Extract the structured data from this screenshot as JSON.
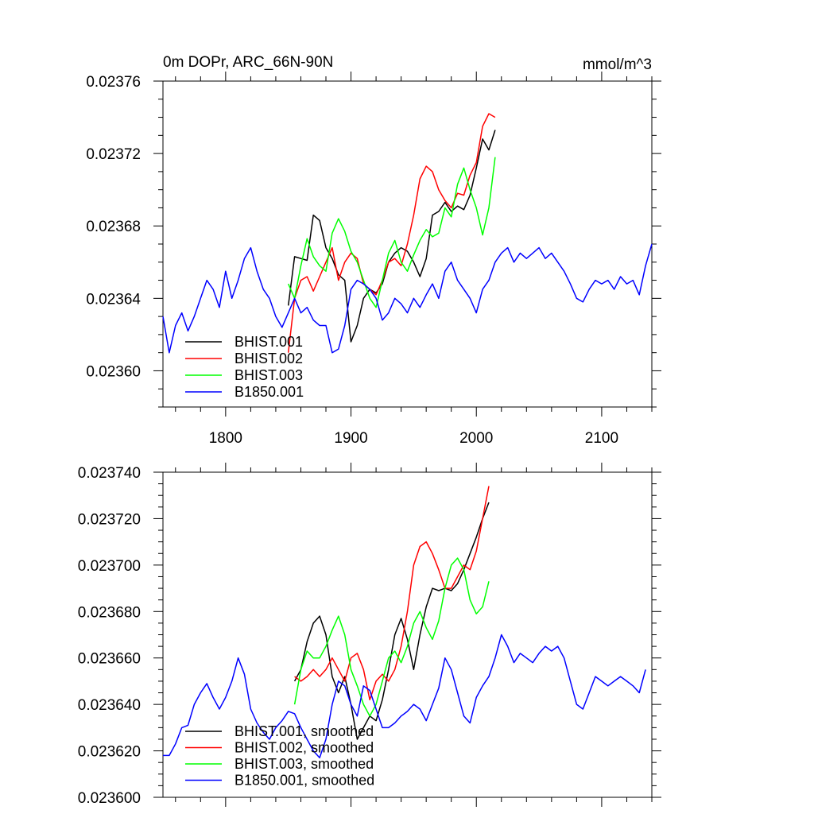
{
  "chart_data": [
    {
      "type": "line",
      "title_left": "0m DOPr, ARC_66N-90N",
      "title_right": "mmol/m^3",
      "xlim": [
        1750,
        2140
      ],
      "ylim": [
        0.02358,
        0.02376
      ],
      "xticks": [
        "1800",
        "1900",
        "2000",
        "2100"
      ],
      "yticks": [
        "0.02360",
        "0.02364",
        "0.02368",
        "0.02372",
        "0.02376"
      ],
      "legend_position": "bottom-left",
      "series": [
        {
          "name": "BHIST.001",
          "color": "#000000",
          "x": [
            1850,
            1855,
            1860,
            1865,
            1870,
            1875,
            1880,
            1885,
            1890,
            1895,
            1900,
            1905,
            1910,
            1915,
            1920,
            1925,
            1930,
            1935,
            1940,
            1945,
            1950,
            1955,
            1960,
            1965,
            1970,
            1975,
            1980,
            1985,
            1990,
            1995,
            2000,
            2005,
            2010,
            2015
          ],
          "y": [
            0.023636,
            0.023663,
            0.023662,
            0.023661,
            0.023686,
            0.023683,
            0.023668,
            0.023662,
            0.023653,
            0.02365,
            0.023616,
            0.023625,
            0.02364,
            0.023645,
            0.023643,
            0.023648,
            0.02366,
            0.023665,
            0.023668,
            0.023666,
            0.02366,
            0.023652,
            0.023662,
            0.023686,
            0.023688,
            0.023693,
            0.023688,
            0.023691,
            0.023689,
            0.023697,
            0.023712,
            0.023728,
            0.023722,
            0.023733
          ]
        },
        {
          "name": "BHIST.002",
          "color": "#ff0000",
          "x": [
            1850,
            1855,
            1860,
            1865,
            1870,
            1875,
            1880,
            1885,
            1890,
            1895,
            1900,
            1905,
            1910,
            1915,
            1920,
            1925,
            1930,
            1935,
            1940,
            1945,
            1950,
            1955,
            1960,
            1965,
            1970,
            1975,
            1980,
            1985,
            1990,
            1995,
            2000,
            2005,
            2010,
            2015
          ],
          "y": [
            0.02361,
            0.02364,
            0.02365,
            0.023652,
            0.023644,
            0.023652,
            0.02366,
            0.023668,
            0.02365,
            0.02366,
            0.023665,
            0.023662,
            0.023648,
            0.023645,
            0.023642,
            0.02365,
            0.02366,
            0.023662,
            0.023658,
            0.02367,
            0.023686,
            0.023706,
            0.023713,
            0.02371,
            0.0237,
            0.023694,
            0.02369,
            0.023698,
            0.023697,
            0.023708,
            0.023715,
            0.023735,
            0.023742,
            0.02374
          ]
        },
        {
          "name": "BHIST.003",
          "color": "#00ff00",
          "x": [
            1850,
            1855,
            1860,
            1865,
            1870,
            1875,
            1880,
            1885,
            1890,
            1895,
            1900,
            1905,
            1910,
            1915,
            1920,
            1925,
            1930,
            1935,
            1940,
            1945,
            1950,
            1955,
            1960,
            1965,
            1970,
            1975,
            1980,
            1985,
            1990,
            1995,
            2000,
            2005,
            2010,
            2015
          ],
          "y": [
            0.023648,
            0.02364,
            0.023658,
            0.023673,
            0.023663,
            0.023658,
            0.023655,
            0.023676,
            0.023684,
            0.023677,
            0.023666,
            0.02366,
            0.02365,
            0.02364,
            0.023635,
            0.02365,
            0.023665,
            0.023672,
            0.02366,
            0.023655,
            0.023664,
            0.023672,
            0.023678,
            0.023674,
            0.023676,
            0.02369,
            0.023685,
            0.023703,
            0.023712,
            0.0237,
            0.02369,
            0.023675,
            0.02369,
            0.023718
          ]
        },
        {
          "name": "B1850.001",
          "color": "#0000ff",
          "x": [
            1750,
            1755,
            1760,
            1765,
            1770,
            1775,
            1780,
            1785,
            1790,
            1795,
            1800,
            1805,
            1810,
            1815,
            1820,
            1825,
            1830,
            1835,
            1840,
            1845,
            1850,
            1855,
            1860,
            1865,
            1870,
            1875,
            1880,
            1885,
            1890,
            1895,
            1900,
            1905,
            1910,
            1915,
            1920,
            1925,
            1930,
            1935,
            1940,
            1945,
            1950,
            1955,
            1960,
            1965,
            1970,
            1975,
            1980,
            1985,
            1990,
            1995,
            2000,
            2005,
            2010,
            2015,
            2020,
            2025,
            2030,
            2035,
            2040,
            2045,
            2050,
            2055,
            2060,
            2065,
            2070,
            2075,
            2080,
            2085,
            2090,
            2095,
            2100,
            2105,
            2110,
            2115,
            2120,
            2125,
            2130,
            2135,
            2140
          ],
          "y": [
            0.02363,
            0.02361,
            0.023625,
            0.023632,
            0.023622,
            0.02363,
            0.02364,
            0.02365,
            0.023645,
            0.023635,
            0.023655,
            0.02364,
            0.02365,
            0.023662,
            0.023668,
            0.023655,
            0.023645,
            0.02364,
            0.02363,
            0.023624,
            0.023632,
            0.02364,
            0.023632,
            0.023635,
            0.023628,
            0.023625,
            0.023625,
            0.02361,
            0.023612,
            0.023625,
            0.023645,
            0.02365,
            0.023648,
            0.023645,
            0.02364,
            0.023628,
            0.023632,
            0.02364,
            0.023637,
            0.023632,
            0.02364,
            0.023635,
            0.023642,
            0.023648,
            0.02364,
            0.023655,
            0.02366,
            0.02365,
            0.023645,
            0.02364,
            0.023632,
            0.023645,
            0.02365,
            0.02366,
            0.023665,
            0.023668,
            0.02366,
            0.023665,
            0.023662,
            0.023665,
            0.023668,
            0.023662,
            0.023665,
            0.02366,
            0.023655,
            0.023648,
            0.02364,
            0.023638,
            0.023645,
            0.02365,
            0.023648,
            0.02365,
            0.023645,
            0.023652,
            0.023648,
            0.02365,
            0.023642,
            0.023658,
            0.02367
          ]
        }
      ]
    },
    {
      "type": "line",
      "xlim": [
        1750,
        2140
      ],
      "ylim": [
        0.0236,
        0.02374
      ],
      "yticks": [
        "0.023600",
        "0.023620",
        "0.023640",
        "0.023660",
        "0.023680",
        "0.023700",
        "0.023720",
        "0.023740"
      ],
      "legend_position": "bottom-left",
      "series": [
        {
          "name": "BHIST.001, smoothed",
          "color": "#000000",
          "x": [
            1855,
            1860,
            1865,
            1870,
            1875,
            1880,
            1885,
            1890,
            1895,
            1900,
            1905,
            1910,
            1915,
            1920,
            1925,
            1930,
            1935,
            1940,
            1945,
            1950,
            1955,
            1960,
            1965,
            1970,
            1975,
            1980,
            1985,
            1990,
            1995,
            2000,
            2005,
            2010
          ],
          "y": [
            0.02365,
            0.023655,
            0.023667,
            0.023675,
            0.023678,
            0.02367,
            0.023652,
            0.023645,
            0.023652,
            0.02364,
            0.023625,
            0.02363,
            0.023635,
            0.023633,
            0.023642,
            0.023655,
            0.02367,
            0.023677,
            0.023668,
            0.023655,
            0.02367,
            0.023682,
            0.02369,
            0.023689,
            0.02369,
            0.023689,
            0.023692,
            0.023698,
            0.023705,
            0.023712,
            0.02372,
            0.023727
          ]
        },
        {
          "name": "BHIST.002, smoothed",
          "color": "#ff0000",
          "x": [
            1855,
            1860,
            1865,
            1870,
            1875,
            1880,
            1885,
            1890,
            1895,
            1900,
            1905,
            1910,
            1915,
            1920,
            1925,
            1930,
            1935,
            1940,
            1945,
            1950,
            1955,
            1960,
            1965,
            1970,
            1975,
            1980,
            1985,
            1990,
            1995,
            2000,
            2005,
            2010
          ],
          "y": [
            0.023652,
            0.02365,
            0.023652,
            0.023655,
            0.023652,
            0.023655,
            0.02366,
            0.023655,
            0.02365,
            0.02366,
            0.023662,
            0.023655,
            0.023642,
            0.02365,
            0.023653,
            0.02365,
            0.023655,
            0.023665,
            0.02368,
            0.0237,
            0.023708,
            0.02371,
            0.023705,
            0.023698,
            0.02369,
            0.02369,
            0.023695,
            0.0237,
            0.023698,
            0.023706,
            0.02372,
            0.023734
          ]
        },
        {
          "name": "BHIST.003, smoothed",
          "color": "#00ff00",
          "x": [
            1855,
            1860,
            1865,
            1870,
            1875,
            1880,
            1885,
            1890,
            1895,
            1900,
            1905,
            1910,
            1915,
            1920,
            1925,
            1930,
            1935,
            1940,
            1945,
            1950,
            1955,
            1960,
            1965,
            1970,
            1975,
            1980,
            1985,
            1990,
            1995,
            2000,
            2005,
            2010
          ],
          "y": [
            0.02364,
            0.023655,
            0.023663,
            0.02366,
            0.02366,
            0.023665,
            0.023672,
            0.023678,
            0.02367,
            0.023655,
            0.023648,
            0.02364,
            0.023635,
            0.02364,
            0.02365,
            0.02366,
            0.023663,
            0.023658,
            0.023665,
            0.023675,
            0.02368,
            0.023673,
            0.023668,
            0.023676,
            0.02369,
            0.0237,
            0.023703,
            0.023698,
            0.023685,
            0.023679,
            0.023682,
            0.023693
          ]
        },
        {
          "name": "B1850.001, smoothed",
          "color": "#0000ff",
          "x": [
            1750,
            1755,
            1760,
            1765,
            1770,
            1775,
            1780,
            1785,
            1790,
            1795,
            1800,
            1805,
            1810,
            1815,
            1820,
            1825,
            1830,
            1835,
            1840,
            1845,
            1850,
            1855,
            1860,
            1865,
            1870,
            1875,
            1880,
            1885,
            1890,
            1895,
            1900,
            1905,
            1910,
            1915,
            1920,
            1925,
            1930,
            1935,
            1940,
            1945,
            1950,
            1955,
            1960,
            1965,
            1970,
            1975,
            1980,
            1985,
            1990,
            1995,
            2000,
            2005,
            2010,
            2015,
            2020,
            2025,
            2030,
            2035,
            2040,
            2045,
            2050,
            2055,
            2060,
            2065,
            2070,
            2075,
            2080,
            2085,
            2090,
            2095,
            2100,
            2105,
            2110,
            2115,
            2120,
            2125,
            2130,
            2135
          ],
          "y": [
            0.023618,
            0.023618,
            0.023623,
            0.02363,
            0.023631,
            0.02364,
            0.023645,
            0.023649,
            0.023643,
            0.023638,
            0.023643,
            0.02365,
            0.02366,
            0.023653,
            0.023638,
            0.023632,
            0.023628,
            0.023625,
            0.02363,
            0.023633,
            0.023637,
            0.023636,
            0.02363,
            0.023625,
            0.02362,
            0.023617,
            0.023625,
            0.02364,
            0.02365,
            0.023648,
            0.02364,
            0.023635,
            0.023648,
            0.023646,
            0.023638,
            0.02363,
            0.02363,
            0.023632,
            0.023635,
            0.023637,
            0.02364,
            0.023638,
            0.023633,
            0.02364,
            0.023647,
            0.02366,
            0.023655,
            0.023645,
            0.023635,
            0.023632,
            0.023643,
            0.023648,
            0.023652,
            0.02366,
            0.02367,
            0.023665,
            0.023658,
            0.023662,
            0.02366,
            0.023658,
            0.023662,
            0.023665,
            0.023663,
            0.023665,
            0.02366,
            0.02365,
            0.02364,
            0.023638,
            0.023645,
            0.023652,
            0.02365,
            0.023648,
            0.02365,
            0.023652,
            0.02365,
            0.023648,
            0.023645,
            0.023655
          ]
        }
      ]
    }
  ]
}
